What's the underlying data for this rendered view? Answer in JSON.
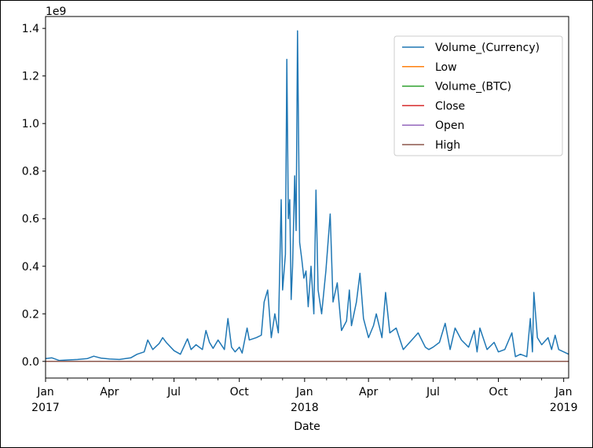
{
  "chart_data": {
    "type": "line",
    "title": "",
    "xlabel": "Date",
    "ylabel": "",
    "y_offset_label": "1e9",
    "x_range": [
      "2017-01-01",
      "2019-01-08"
    ],
    "ylim": [
      -0.07,
      1.45
    ],
    "y_scale_factor": 1000000000,
    "grid": false,
    "legend_position": "top-right",
    "x_ticks": [
      {
        "date": "2017-01-01",
        "label": "Jan",
        "year": "2017"
      },
      {
        "date": "2017-04-01",
        "label": "Apr",
        "year": ""
      },
      {
        "date": "2017-07-01",
        "label": "Jul",
        "year": ""
      },
      {
        "date": "2017-10-01",
        "label": "Oct",
        "year": ""
      },
      {
        "date": "2018-01-01",
        "label": "Jan",
        "year": "2018"
      },
      {
        "date": "2018-04-01",
        "label": "Apr",
        "year": ""
      },
      {
        "date": "2018-07-01",
        "label": "Jul",
        "year": ""
      },
      {
        "date": "2018-10-01",
        "label": "Oct",
        "year": ""
      },
      {
        "date": "2019-01-01",
        "label": "Jan",
        "year": "2019"
      }
    ],
    "y_ticks": [
      "0.0",
      "0.2",
      "0.4",
      "0.6",
      "0.8",
      "1.0",
      "1.2",
      "1.4"
    ],
    "series": [
      {
        "name": "Volume_(Currency)",
        "color": "#1f77b4",
        "points": [
          [
            "2017-01-01",
            0.012
          ],
          [
            "2017-01-10",
            0.015
          ],
          [
            "2017-01-20",
            0.004
          ],
          [
            "2017-02-01",
            0.006
          ],
          [
            "2017-02-15",
            0.008
          ],
          [
            "2017-03-01",
            0.012
          ],
          [
            "2017-03-10",
            0.022
          ],
          [
            "2017-03-20",
            0.014
          ],
          [
            "2017-04-01",
            0.01
          ],
          [
            "2017-04-15",
            0.008
          ],
          [
            "2017-05-01",
            0.015
          ],
          [
            "2017-05-10",
            0.03
          ],
          [
            "2017-05-20",
            0.04
          ],
          [
            "2017-05-25",
            0.09
          ],
          [
            "2017-06-01",
            0.05
          ],
          [
            "2017-06-10",
            0.075
          ],
          [
            "2017-06-15",
            0.1
          ],
          [
            "2017-06-20",
            0.08
          ],
          [
            "2017-07-01",
            0.045
          ],
          [
            "2017-07-10",
            0.03
          ],
          [
            "2017-07-20",
            0.095
          ],
          [
            "2017-07-25",
            0.05
          ],
          [
            "2017-08-01",
            0.07
          ],
          [
            "2017-08-10",
            0.05
          ],
          [
            "2017-08-15",
            0.13
          ],
          [
            "2017-08-20",
            0.08
          ],
          [
            "2017-08-25",
            0.055
          ],
          [
            "2017-09-01",
            0.09
          ],
          [
            "2017-09-10",
            0.05
          ],
          [
            "2017-09-15",
            0.18
          ],
          [
            "2017-09-20",
            0.06
          ],
          [
            "2017-09-25",
            0.04
          ],
          [
            "2017-10-01",
            0.06
          ],
          [
            "2017-10-05",
            0.035
          ],
          [
            "2017-10-12",
            0.14
          ],
          [
            "2017-10-15",
            0.09
          ],
          [
            "2017-10-25",
            0.1
          ],
          [
            "2017-11-01",
            0.11
          ],
          [
            "2017-11-05",
            0.25
          ],
          [
            "2017-11-10",
            0.3
          ],
          [
            "2017-11-15",
            0.1
          ],
          [
            "2017-11-20",
            0.2
          ],
          [
            "2017-11-25",
            0.12
          ],
          [
            "2017-11-29",
            0.68
          ],
          [
            "2017-12-01",
            0.3
          ],
          [
            "2017-12-05",
            0.45
          ],
          [
            "2017-12-07",
            1.27
          ],
          [
            "2017-12-09",
            0.6
          ],
          [
            "2017-12-11",
            0.68
          ],
          [
            "2017-12-13",
            0.26
          ],
          [
            "2017-12-15",
            0.4
          ],
          [
            "2017-12-18",
            0.78
          ],
          [
            "2017-12-20",
            0.55
          ],
          [
            "2017-12-22",
            1.39
          ],
          [
            "2017-12-25",
            0.5
          ],
          [
            "2017-12-28",
            0.43
          ],
          [
            "2017-12-31",
            0.35
          ],
          [
            "2018-01-03",
            0.38
          ],
          [
            "2018-01-06",
            0.23
          ],
          [
            "2018-01-10",
            0.4
          ],
          [
            "2018-01-14",
            0.2
          ],
          [
            "2018-01-17",
            0.72
          ],
          [
            "2018-01-20",
            0.3
          ],
          [
            "2018-01-25",
            0.2
          ],
          [
            "2018-01-31",
            0.38
          ],
          [
            "2018-02-06",
            0.62
          ],
          [
            "2018-02-10",
            0.25
          ],
          [
            "2018-02-16",
            0.33
          ],
          [
            "2018-02-22",
            0.13
          ],
          [
            "2018-03-01",
            0.17
          ],
          [
            "2018-03-05",
            0.3
          ],
          [
            "2018-03-08",
            0.15
          ],
          [
            "2018-03-15",
            0.25
          ],
          [
            "2018-03-20",
            0.37
          ],
          [
            "2018-03-25",
            0.18
          ],
          [
            "2018-04-01",
            0.1
          ],
          [
            "2018-04-08",
            0.15
          ],
          [
            "2018-04-12",
            0.2
          ],
          [
            "2018-04-20",
            0.1
          ],
          [
            "2018-04-25",
            0.29
          ],
          [
            "2018-05-01",
            0.12
          ],
          [
            "2018-05-10",
            0.14
          ],
          [
            "2018-05-20",
            0.05
          ],
          [
            "2018-06-01",
            0.09
          ],
          [
            "2018-06-10",
            0.12
          ],
          [
            "2018-06-20",
            0.06
          ],
          [
            "2018-06-25",
            0.05
          ],
          [
            "2018-07-01",
            0.06
          ],
          [
            "2018-07-10",
            0.08
          ],
          [
            "2018-07-18",
            0.16
          ],
          [
            "2018-07-25",
            0.05
          ],
          [
            "2018-08-01",
            0.14
          ],
          [
            "2018-08-10",
            0.09
          ],
          [
            "2018-08-20",
            0.06
          ],
          [
            "2018-08-28",
            0.13
          ],
          [
            "2018-09-01",
            0.04
          ],
          [
            "2018-09-05",
            0.14
          ],
          [
            "2018-09-15",
            0.05
          ],
          [
            "2018-09-25",
            0.08
          ],
          [
            "2018-10-01",
            0.04
          ],
          [
            "2018-10-10",
            0.05
          ],
          [
            "2018-10-20",
            0.12
          ],
          [
            "2018-10-25",
            0.02
          ],
          [
            "2018-11-01",
            0.03
          ],
          [
            "2018-11-10",
            0.02
          ],
          [
            "2018-11-15",
            0.18
          ],
          [
            "2018-11-18",
            0.04
          ],
          [
            "2018-11-20",
            0.29
          ],
          [
            "2018-11-25",
            0.1
          ],
          [
            "2018-12-01",
            0.07
          ],
          [
            "2018-12-10",
            0.1
          ],
          [
            "2018-12-15",
            0.05
          ],
          [
            "2018-12-20",
            0.11
          ],
          [
            "2018-12-25",
            0.05
          ],
          [
            "2019-01-01",
            0.04
          ],
          [
            "2019-01-08",
            0.03
          ]
        ]
      },
      {
        "name": "Low",
        "color": "#ff7f0e",
        "points": [
          [
            "2017-01-01",
            0.0
          ],
          [
            "2019-01-08",
            0.0
          ]
        ]
      },
      {
        "name": "Volume_(BTC)",
        "color": "#2ca02c",
        "points": [
          [
            "2017-01-01",
            0.0
          ],
          [
            "2019-01-08",
            0.0
          ]
        ]
      },
      {
        "name": "Close",
        "color": "#d62728",
        "points": [
          [
            "2017-01-01",
            0.0
          ],
          [
            "2019-01-08",
            0.0
          ]
        ]
      },
      {
        "name": "Open",
        "color": "#9467bd",
        "points": [
          [
            "2017-01-01",
            0.0
          ],
          [
            "2019-01-08",
            0.0
          ]
        ]
      },
      {
        "name": "High",
        "color": "#8c564b",
        "points": [
          [
            "2017-01-01",
            0.0
          ],
          [
            "2019-01-08",
            0.0
          ]
        ]
      }
    ]
  }
}
